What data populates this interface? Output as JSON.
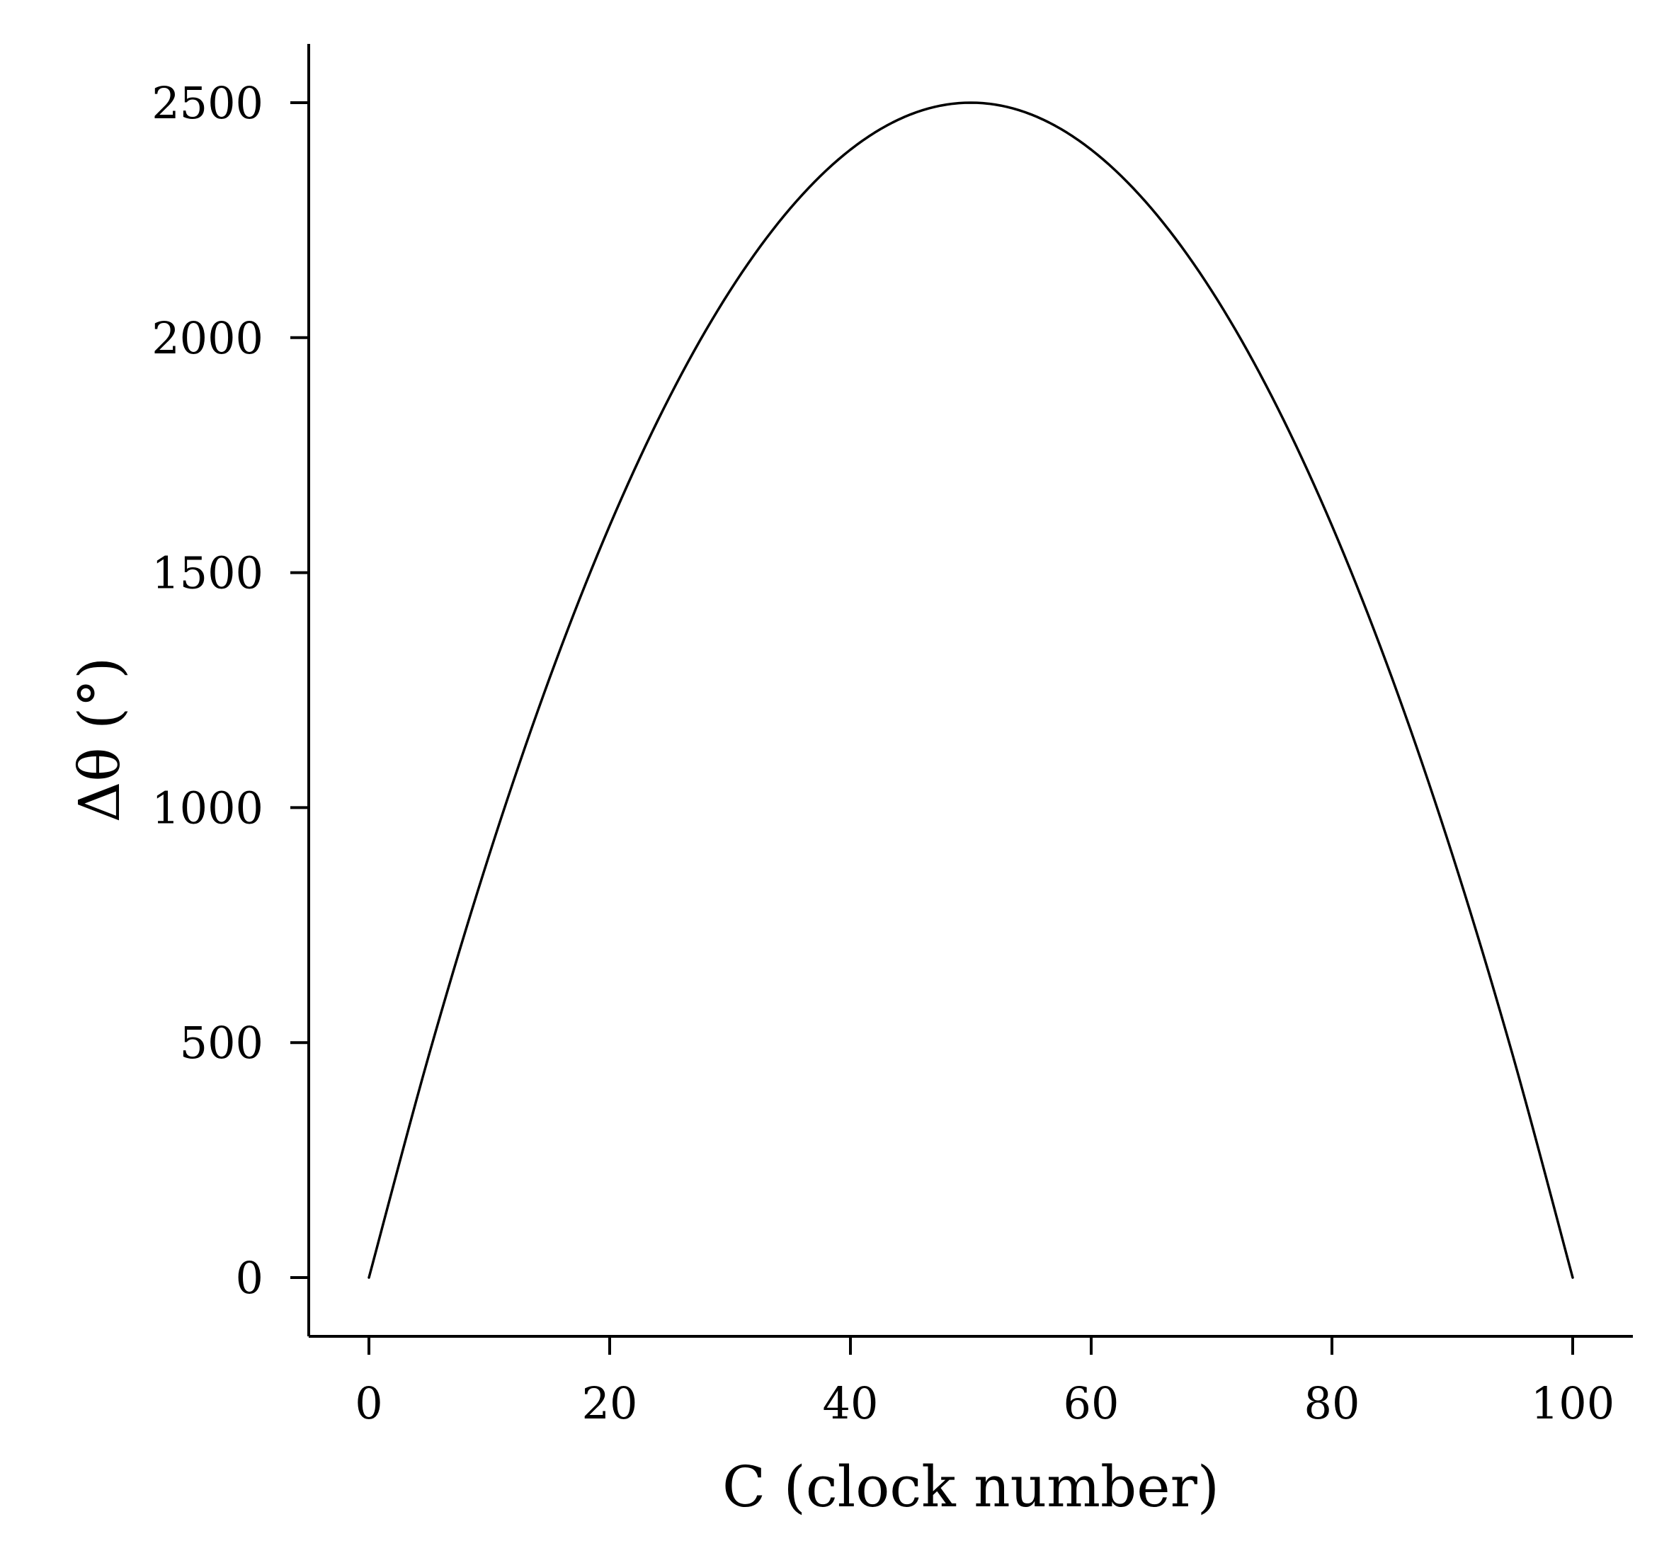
{
  "chart_data": {
    "type": "line",
    "title": "",
    "xlabel": "C (clock number)",
    "ylabel": "Δθ (°)",
    "xlim": [
      -5,
      105
    ],
    "ylim": [
      -125,
      2625
    ],
    "xticks": [
      0,
      20,
      40,
      60,
      80,
      100
    ],
    "yticks": [
      0,
      500,
      1000,
      1500,
      2000,
      2500
    ],
    "xtick_labels": [
      "0",
      "20",
      "40",
      "60",
      "80",
      "100"
    ],
    "ytick_labels": [
      "0",
      "500",
      "1000",
      "1500",
      "2000",
      "2500"
    ],
    "grid": false,
    "legend": "none",
    "series": [
      {
        "color": "#000000",
        "x": [
          0,
          5,
          10,
          15,
          20,
          25,
          30,
          35,
          40,
          45,
          50,
          55,
          60,
          65,
          70,
          75,
          80,
          85,
          90,
          95,
          100
        ],
        "y": [
          0,
          475,
          900,
          1275,
          1600,
          1875,
          2100,
          2275,
          2400,
          2475,
          2500,
          2475,
          2400,
          2275,
          2100,
          1875,
          1600,
          1275,
          900,
          475,
          0
        ]
      }
    ]
  }
}
